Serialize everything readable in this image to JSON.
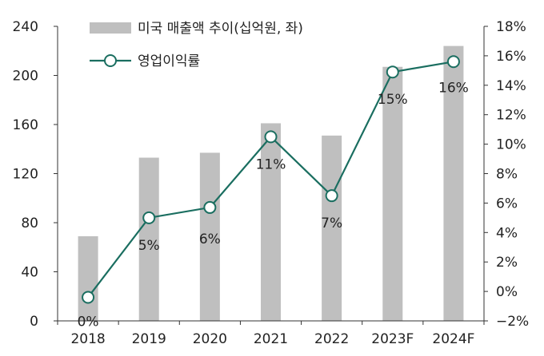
{
  "chart_data": {
    "type": "bar+line",
    "categories": [
      "2018",
      "2019",
      "2020",
      "2021",
      "2022",
      "2023F",
      "2024F"
    ],
    "series": [
      {
        "name": "미국 매출액 추이(십억원, 좌)",
        "type": "bar",
        "axis": "left",
        "color": "#bfbfbf",
        "values": [
          69,
          133,
          137,
          161,
          151,
          207,
          224
        ]
      },
      {
        "name": "영업이익률",
        "type": "line",
        "axis": "right",
        "color": "#1a6e60",
        "values": [
          -0.4,
          5.0,
          5.7,
          10.5,
          6.5,
          14.9,
          15.6
        ],
        "labels": [
          "0%",
          "5%",
          "6%",
          "11%",
          "7%",
          "15%",
          "16%"
        ]
      }
    ],
    "y_left": {
      "min": 0,
      "max": 240,
      "ticks": [
        0,
        40,
        80,
        120,
        160,
        200,
        240
      ]
    },
    "y_right": {
      "min": -2,
      "max": 18,
      "ticks": [
        -2,
        0,
        2,
        4,
        6,
        8,
        10,
        12,
        14,
        16,
        18
      ],
      "tick_labels": [
        "−2%",
        "0%",
        "2%",
        "4%",
        "6%",
        "8%",
        "10%",
        "12%",
        "14%",
        "16%",
        "18%"
      ]
    },
    "grid": false,
    "legend_position": "top-left"
  }
}
